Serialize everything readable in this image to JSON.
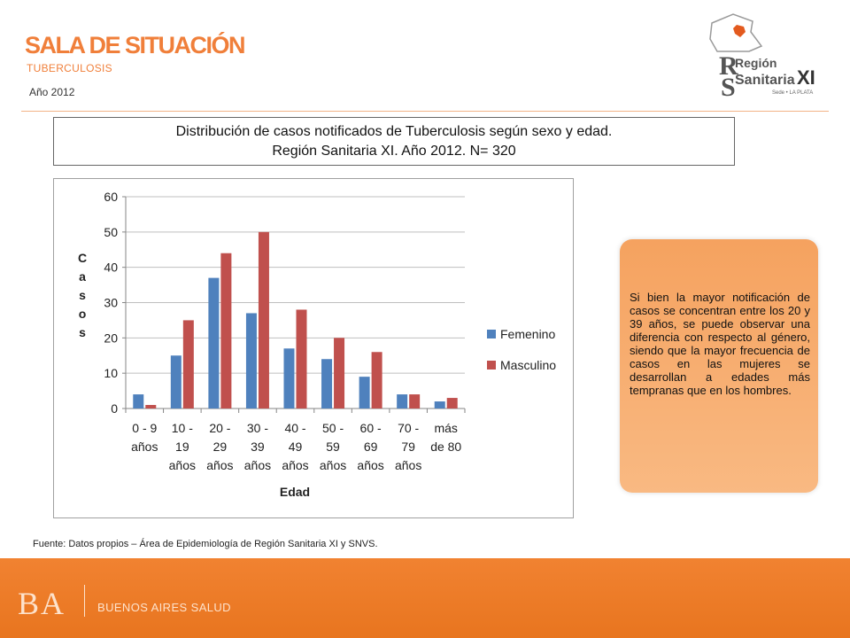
{
  "header": {
    "title": "SALA DE SITUACIÓN",
    "subtitle": "TUBERCULOSIS",
    "year": "Año 2012"
  },
  "logo": {
    "line1": "Región",
    "line2": "Sanitaria",
    "roman": "XI",
    "caption": "Sede • LA PLATA"
  },
  "title_box": {
    "line1": "Distribución de casos notificados de Tuberculosis  según sexo y edad.",
    "line2": "Región Sanitaria XI. Año 2012. N= 320"
  },
  "chart_data": {
    "type": "bar",
    "categories": [
      [
        "0 - 9",
        "años"
      ],
      [
        "10 -",
        "19",
        "años"
      ],
      [
        "20 -",
        "29",
        "años"
      ],
      [
        "30 -",
        "39",
        "años"
      ],
      [
        "40 -",
        "49",
        "años"
      ],
      [
        "50 -",
        "59",
        "años"
      ],
      [
        "60 -",
        "69",
        "años"
      ],
      [
        "70 -",
        "79",
        "años"
      ],
      [
        "más",
        "de 80"
      ]
    ],
    "series": [
      {
        "name": "Femenino",
        "color": "#4f81bd",
        "values": [
          4,
          15,
          37,
          27,
          17,
          14,
          9,
          4,
          2
        ]
      },
      {
        "name": "Masculino",
        "color": "#c0504d",
        "values": [
          1,
          25,
          44,
          50,
          28,
          20,
          16,
          4,
          3
        ]
      }
    ],
    "xlabel": "Edad",
    "ylabel": "Casos",
    "ylim": [
      0,
      60
    ],
    "yticks": [
      0,
      10,
      20,
      30,
      40,
      50,
      60
    ],
    "grid": true,
    "legend": "right"
  },
  "note": "Si bien la mayor notificación de casos se concentran entre los 20 y 39 años, se puede observar una diferencia con respecto al género, siendo que la mayor frecuencia de casos en las mujeres se desarrollan a edades más tempranas que en los hombres.",
  "source": "Fuente: Datos propios – Área de Epidemiología de Región Sanitaria XI y SNVS.",
  "footer": {
    "mark": "BA",
    "label": "BUENOS AIRES SALUD"
  }
}
